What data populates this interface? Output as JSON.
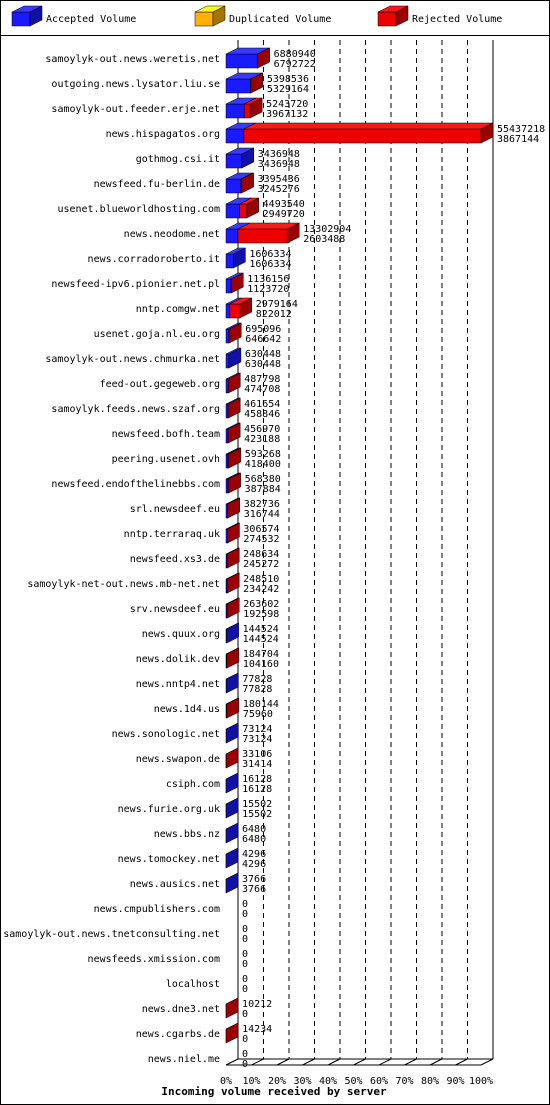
{
  "chart_data": {
    "type": "stacked-bar-3d",
    "x_label": "Incoming volume received by server",
    "categories": [
      "samoylyk-out.news.weretis.net",
      "outgoing.news.lysator.liu.se",
      "samoylyk-out.feeder.erje.net",
      "news.hispagatos.org",
      "gothmog.csi.it",
      "newsfeed.fu-berlin.de",
      "usenet.blueworldhosting.com",
      "news.neodome.net",
      "news.corradoroberto.it",
      "newsfeed-ipv6.pionier.net.pl",
      "nntp.comgw.net",
      "usenet.goja.nl.eu.org",
      "samoylyk-out.news.chmurka.net",
      "feed-out.gegeweb.org",
      "samoylyk.feeds.news.szaf.org",
      "newsfeed.bofh.team",
      "peering.usenet.ovh",
      "newsfeed.endofthelinebbs.com",
      "srl.newsdeef.eu",
      "nntp.terraraq.uk",
      "newsfeed.xs3.de",
      "samoylyk-net-out.news.mb-net.net",
      "srv.newsdeef.eu",
      "news.quux.org",
      "news.dolik.dev",
      "news.nntp4.net",
      "news.1d4.us",
      "news.sonologic.net",
      "news.swapon.de",
      "csiph.com",
      "news.furie.org.uk",
      "news.bbs.nz",
      "news.tomockey.net",
      "news.ausics.net",
      "news.cmpublishers.com",
      "samoylyk-out.news.tnetconsulting.net",
      "newsfeeds.xmission.com",
      "localhost",
      "news.dne3.net",
      "news.cgarbs.de",
      "news.niel.me"
    ],
    "totals": [
      6880940,
      5398536,
      5243720,
      55437218,
      3436948,
      3395436,
      4493540,
      13302904,
      1606334,
      1136156,
      2979164,
      695096,
      630448,
      487798,
      461654,
      456970,
      593268,
      568380,
      382736,
      306574,
      248634,
      248510,
      263602,
      144524,
      184704,
      77828,
      180144,
      73124,
      33106,
      16128,
      15502,
      6480,
      4296,
      3766,
      0,
      0,
      0,
      0,
      10212,
      14234,
      0
    ],
    "series": [
      {
        "name": "Accepted Volume",
        "color": "#1a1aff",
        "values": [
          6792722,
          5329164,
          3967132,
          3867144,
          3436948,
          3245276,
          2949720,
          2603488,
          1606334,
          1123720,
          822012,
          646642,
          630448,
          474708,
          458846,
          423188,
          418400,
          387884,
          316744,
          274532,
          245272,
          234242,
          192598,
          144524,
          104160,
          77828,
          75960,
          73124,
          31414,
          16128,
          15502,
          6480,
          4296,
          3766,
          0,
          0,
          0,
          0,
          0,
          0,
          0
        ]
      },
      {
        "name": "Duplicated Volume",
        "color": "#ffb000",
        "values": [
          0,
          0,
          0,
          0,
          0,
          0,
          0,
          0,
          0,
          0,
          0,
          0,
          0,
          0,
          0,
          0,
          0,
          0,
          0,
          0,
          0,
          0,
          0,
          0,
          0,
          0,
          0,
          0,
          0,
          0,
          0,
          0,
          0,
          0,
          0,
          0,
          0,
          0,
          0,
          0,
          0
        ]
      },
      {
        "name": "Rejected Volume",
        "color": "#ee0000",
        "values": [
          88218,
          69372,
          1276588,
          51570074,
          0,
          150160,
          1543820,
          10699416,
          0,
          12436,
          2157152,
          48454,
          0,
          13090,
          2808,
          33782,
          174868,
          180496,
          65992,
          32042,
          3362,
          14268,
          71004,
          0,
          80544,
          0,
          104184,
          0,
          1692,
          0,
          0,
          0,
          0,
          0,
          0,
          0,
          0,
          0,
          10212,
          14234,
          0
        ]
      }
    ],
    "xlim": [
      0,
      55437218
    ],
    "xticks": [
      {
        "value": 0,
        "label": "0%"
      },
      {
        "value": 5543721.8,
        "label": "10%"
      },
      {
        "value": 11087443.6,
        "label": "20%"
      },
      {
        "value": 16631165.4,
        "label": "30%"
      },
      {
        "value": 22174887.2,
        "label": "40%"
      },
      {
        "value": 27718609,
        "label": "50%"
      },
      {
        "value": 33262330.8,
        "label": "60%"
      },
      {
        "value": 38806052.6,
        "label": "70%"
      },
      {
        "value": 44349774.4,
        "label": "80%"
      },
      {
        "value": 49893496.2,
        "label": "90%"
      },
      {
        "value": 55437218,
        "label": "100%"
      }
    ],
    "grid": true
  }
}
